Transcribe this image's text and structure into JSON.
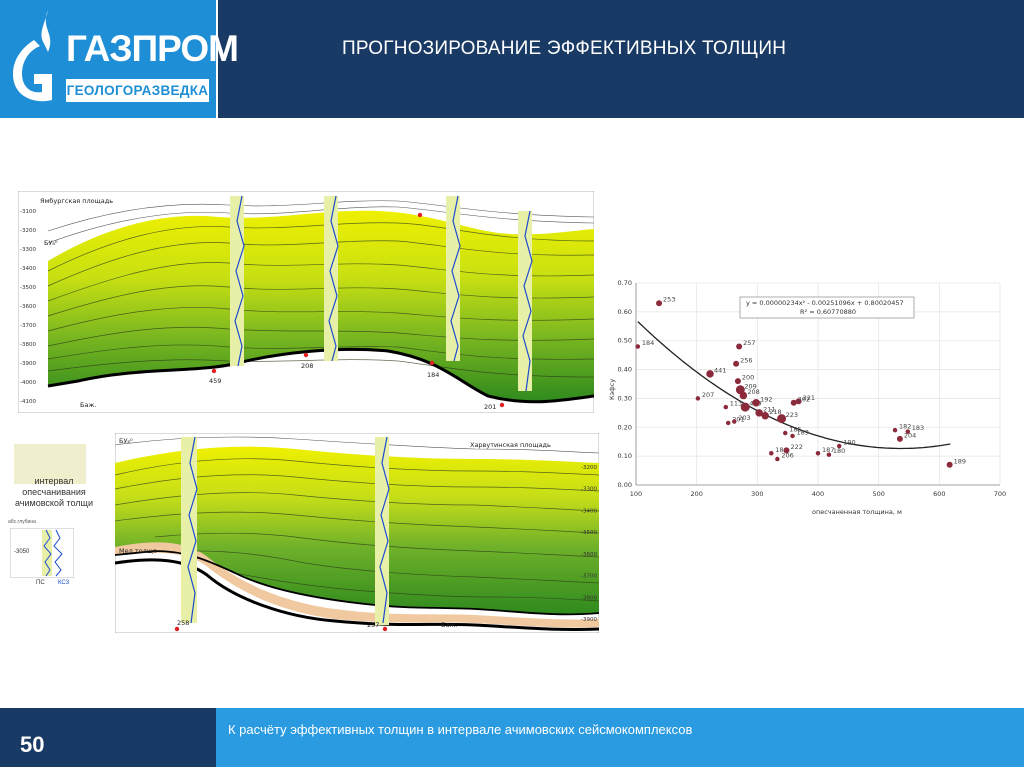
{
  "header": {
    "title": "ПРОГНОЗИРОВАНИЕ ЭФФЕКТИВНЫХ ТОЛЩИН",
    "logo_main": "ГАЗПРОМ",
    "logo_sub": "ГЕОЛОГОРАЗВЕДКА"
  },
  "footer": {
    "page_number": "50",
    "caption": "К расчёту эффективных толщин в интервале ачимовских сейсмокомплексов"
  },
  "section_top": {
    "area_label": "Ямбургская площадь",
    "horizon_label": "БУ₈⁰",
    "depth_ticks": [
      "-3100",
      "-3200",
      "-3300",
      "-3400",
      "-3500",
      "-3600",
      "-3700",
      "-3800",
      "-3900",
      "-4000",
      "-4100"
    ],
    "wells": [
      "459",
      "208",
      "184",
      "201"
    ],
    "bottom_label": "Баж."
  },
  "section_bottom": {
    "area_label": "Харвутинская площадь",
    "horizon_label": "БУ₈⁰",
    "depth_ticks": [
      "-3200",
      "-3300",
      "-3400",
      "-3500",
      "-3600",
      "-3700",
      "-3800",
      "-3900"
    ],
    "wells": [
      "258",
      "257"
    ],
    "left_label": "Мел толща",
    "bottom_label": "Баж."
  },
  "legend": {
    "label": "интервал опесчанивания ачимовской толщи",
    "inset_title": "абс.глубина",
    "inset_depth": "-3050",
    "curve1": "ПС",
    "curve2": "КС3"
  },
  "chart_data": {
    "type": "scatter",
    "title": "",
    "xlabel": "опесчаненная толщина, м",
    "ylabel": "Кэфсу",
    "xlim": [
      100,
      700
    ],
    "ylim": [
      0,
      0.7
    ],
    "xticks": [
      "100",
      "200",
      "300",
      "400",
      "500",
      "600",
      "700"
    ],
    "yticks": [
      "0.00",
      "0.10",
      "0.20",
      "0.30",
      "0.40",
      "0.50",
      "0.60",
      "0.70"
    ],
    "grid": true,
    "equation": "y = 0.00000234x² - 0.00251096x + 0.80020457",
    "r2": "R² = 0.60770880",
    "trend_coeffs": [
      2.34e-06,
      -0.00251096,
      0.80020457
    ],
    "trend_range": [
      103,
      620
    ],
    "colors": {
      "point": "#8b2a3b",
      "trend": "#222222",
      "grid": "#e6e6e6"
    },
    "points": [
      {
        "label": "253",
        "x": 138,
        "y": 0.63,
        "size": 4
      },
      {
        "label": "184",
        "x": 103,
        "y": 0.48,
        "size": 3
      },
      {
        "label": "257",
        "x": 270,
        "y": 0.48,
        "size": 4
      },
      {
        "label": "256",
        "x": 265,
        "y": 0.42,
        "size": 4
      },
      {
        "label": "441",
        "x": 222,
        "y": 0.385,
        "size": 5
      },
      {
        "label": "200",
        "x": 268,
        "y": 0.36,
        "size": 4
      },
      {
        "label": "207",
        "x": 202,
        "y": 0.3,
        "size": 3
      },
      {
        "label": "209",
        "x": 272,
        "y": 0.33,
        "size": 6
      },
      {
        "label": "208",
        "x": 277,
        "y": 0.31,
        "size": 5
      },
      {
        "label": "113",
        "x": 248,
        "y": 0.27,
        "size": 3
      },
      {
        "label": "459",
        "x": 280,
        "y": 0.27,
        "size": 6
      },
      {
        "label": "192",
        "x": 298,
        "y": 0.285,
        "size": 5
      },
      {
        "label": "221",
        "x": 368,
        "y": 0.29,
        "size": 4
      },
      {
        "label": "202",
        "x": 360,
        "y": 0.285,
        "size": 4
      },
      {
        "label": "211",
        "x": 303,
        "y": 0.25,
        "size": 5
      },
      {
        "label": "218",
        "x": 313,
        "y": 0.24,
        "size": 5
      },
      {
        "label": "201",
        "x": 252,
        "y": 0.215,
        "size": 3
      },
      {
        "label": "203",
        "x": 262,
        "y": 0.22,
        "size": 3
      },
      {
        "label": "223",
        "x": 340,
        "y": 0.23,
        "size": 6
      },
      {
        "label": "185",
        "x": 346,
        "y": 0.18,
        "size": 3
      },
      {
        "label": "189",
        "x": 358,
        "y": 0.17,
        "size": 3
      },
      {
        "label": "186",
        "x": 323,
        "y": 0.11,
        "size": 3
      },
      {
        "label": "206",
        "x": 333,
        "y": 0.09,
        "size": 3
      },
      {
        "label": "222",
        "x": 348,
        "y": 0.12,
        "size": 4
      },
      {
        "label": "187",
        "x": 400,
        "y": 0.11,
        "size": 3
      },
      {
        "label": "180",
        "x": 418,
        "y": 0.105,
        "size": 3
      },
      {
        "label": "190",
        "x": 435,
        "y": 0.135,
        "size": 3
      },
      {
        "label": "182",
        "x": 527,
        "y": 0.19,
        "size": 3
      },
      {
        "label": "204",
        "x": 535,
        "y": 0.16,
        "size": 4
      },
      {
        "label": "183",
        "x": 548,
        "y": 0.185,
        "size": 3
      },
      {
        "label": "189",
        "x": 617,
        "y": 0.07,
        "size": 4
      }
    ]
  }
}
